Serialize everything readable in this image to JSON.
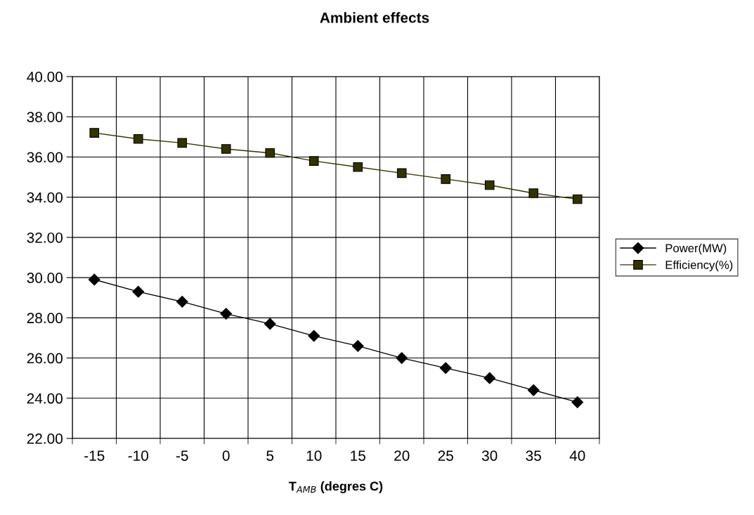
{
  "chart_data": {
    "type": "line",
    "title": "Ambient effects",
    "xlabel": "T$_{AMB}$ (degres C)",
    "categories": [
      "-15",
      "-10",
      "-5",
      "0",
      "5",
      "10",
      "15",
      "20",
      "25",
      "30",
      "35",
      "40"
    ],
    "series": [
      {
        "name": "Power(MW)",
        "color": "#000000",
        "marker": "diamond",
        "values": [
          29.9,
          29.3,
          28.8,
          28.2,
          27.7,
          27.1,
          26.6,
          26.0,
          25.5,
          25.0,
          24.4,
          23.8
        ]
      },
      {
        "name": "Efficiency(%)",
        "color": "#333300",
        "marker": "square",
        "values": [
          37.2,
          36.9,
          36.7,
          36.4,
          36.2,
          35.8,
          35.5,
          35.2,
          34.9,
          34.6,
          34.2,
          33.9
        ]
      }
    ],
    "ylim": [
      22,
      40
    ],
    "yticks": [
      {
        "value": 22,
        "label": "22.00"
      },
      {
        "value": 24,
        "label": "24.00"
      },
      {
        "value": 26,
        "label": "26.00"
      },
      {
        "value": 28,
        "label": "28.00"
      },
      {
        "value": 30,
        "label": "30.00"
      },
      {
        "value": 32,
        "label": "32.00"
      },
      {
        "value": 34,
        "label": "34.00"
      },
      {
        "value": 36,
        "label": "36.00"
      },
      {
        "value": 38,
        "label": "38.00"
      },
      {
        "value": 40,
        "label": "40.00"
      }
    ],
    "grid": true,
    "legend": "right",
    "line_style": "solid"
  }
}
